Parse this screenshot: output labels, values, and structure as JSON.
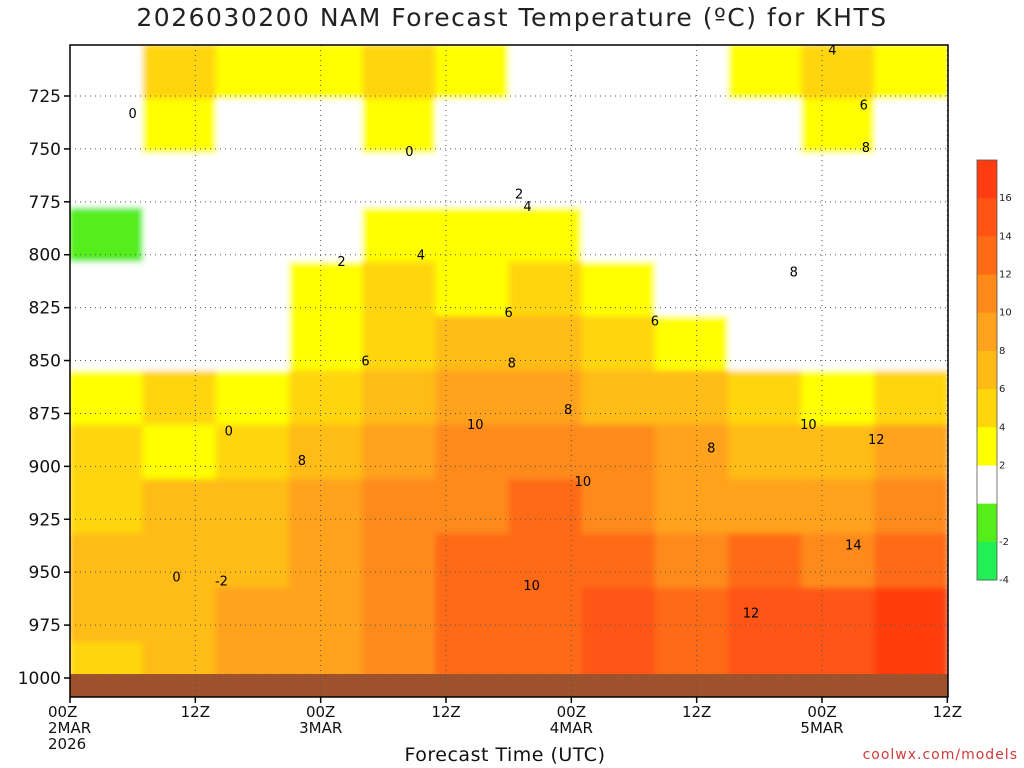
{
  "title": "2026030200 NAM Forecast Temperature (ºC) for KHTS",
  "xlabel": "Forecast Time (UTC)",
  "watermark": "coolwx.com/models",
  "chart_data": {
    "type": "heatmap",
    "title": "2026030200 NAM Forecast Temperature (ºC) for KHTS",
    "xlabel": "Forecast Time (UTC)",
    "ylabel": "",
    "x_ticks": [
      {
        "hour": 0,
        "lines": [
          "00Z",
          "2MAR",
          "2026"
        ]
      },
      {
        "hour": 12,
        "lines": [
          "12Z"
        ]
      },
      {
        "hour": 24,
        "lines": [
          "00Z",
          "3MAR"
        ]
      },
      {
        "hour": 36,
        "lines": [
          "12Z"
        ]
      },
      {
        "hour": 48,
        "lines": [
          "00Z",
          "4MAR"
        ]
      },
      {
        "hour": 60,
        "lines": [
          "12Z"
        ]
      },
      {
        "hour": 72,
        "lines": [
          "00Z",
          "5MAR"
        ]
      },
      {
        "hour": 84,
        "lines": [
          "12Z"
        ]
      }
    ],
    "xlim": [
      0,
      84
    ],
    "y_ticks": [
      725,
      750,
      775,
      800,
      825,
      850,
      875,
      900,
      925,
      950,
      975,
      1000
    ],
    "ylim": [
      700,
      1003
    ],
    "grid": true,
    "grid_style": "dotted",
    "colorbar": {
      "placement": "right",
      "tick_labels": [
        "16",
        "14",
        "12",
        "10",
        "8",
        "6",
        "4",
        "2",
        "-2",
        "-4"
      ],
      "bands": [
        {
          "from": 16,
          "to": 18,
          "color": "#ff3d10"
        },
        {
          "from": 14,
          "to": 16,
          "color": "#ff5412"
        },
        {
          "from": 12,
          "to": 14,
          "color": "#ff6a15"
        },
        {
          "from": 10,
          "to": 12,
          "color": "#ff8a1a"
        },
        {
          "from": 8,
          "to": 10,
          "color": "#ffa21c"
        },
        {
          "from": 6,
          "to": 8,
          "color": "#ffbb14"
        },
        {
          "from": 4,
          "to": 6,
          "color": "#ffd60c"
        },
        {
          "from": 2,
          "to": 4,
          "color": "#ffff00"
        },
        {
          "from": -2,
          "to": 2,
          "color": "#ffffff"
        },
        {
          "from": -4,
          "to": -2,
          "color": "#55ee1a"
        },
        {
          "from": -6,
          "to": -4,
          "color": "#22ee55"
        }
      ]
    },
    "series": [
      {
        "values": [
          [
            1,
            5,
            3,
            2,
            4,
            2,
            1,
            0,
            1,
            3,
            4,
            3
          ],
          [
            -1,
            2,
            1,
            0,
            3,
            1,
            0,
            -1,
            0,
            1,
            2,
            0
          ],
          [
            0,
            -1,
            -2,
            0,
            1,
            0,
            1,
            0,
            1,
            -1,
            -2,
            0
          ],
          [
            -3,
            -2,
            0,
            0,
            2,
            3,
            2,
            1,
            -1,
            0,
            0,
            1
          ],
          [
            -2,
            0,
            -1,
            2,
            4,
            3,
            5,
            2,
            1,
            0,
            -1,
            1
          ],
          [
            1,
            -1,
            0,
            3,
            4,
            6,
            6,
            4,
            3,
            1,
            0,
            0
          ],
          [
            3,
            4,
            2,
            5,
            6,
            9,
            8,
            7,
            6,
            5,
            3,
            4
          ],
          [
            4,
            3,
            5,
            6,
            8,
            10,
            11,
            10,
            8,
            7,
            6,
            8
          ],
          [
            5,
            6,
            6,
            8,
            10,
            11,
            12,
            11,
            9,
            9,
            8,
            10
          ],
          [
            6,
            6,
            7,
            8,
            11,
            12,
            13,
            12,
            11,
            12,
            10,
            12
          ],
          [
            6,
            6,
            8,
            9,
            11,
            12,
            13,
            14,
            12,
            14,
            15,
            16
          ],
          [
            5,
            7,
            8,
            9,
            11,
            12,
            13,
            14,
            13,
            15,
            15,
            16
          ]
        ]
      }
    ],
    "contour_labels": [
      {
        "text": "0",
        "hour": 6.0,
        "p": 733
      },
      {
        "text": "0",
        "hour": 32.5,
        "p": 751
      },
      {
        "text": "0",
        "hour": 15.2,
        "p": 883
      },
      {
        "text": "0",
        "hour": 10.2,
        "p": 952
      },
      {
        "text": "-2",
        "hour": 14.5,
        "p": 954
      },
      {
        "text": "2",
        "hour": 43.0,
        "p": 771
      },
      {
        "text": "2",
        "hour": 26.0,
        "p": 803
      },
      {
        "text": "4",
        "hour": 43.8,
        "p": 777
      },
      {
        "text": "4",
        "hour": 33.6,
        "p": 800
      },
      {
        "text": "4",
        "hour": 73.0,
        "p": 703
      },
      {
        "text": "6",
        "hour": 42.0,
        "p": 827
      },
      {
        "text": "6",
        "hour": 56.0,
        "p": 831
      },
      {
        "text": "6",
        "hour": 28.3,
        "p": 850
      },
      {
        "text": "6",
        "hour": 76.0,
        "p": 729
      },
      {
        "text": "8",
        "hour": 42.3,
        "p": 851
      },
      {
        "text": "8",
        "hour": 47.7,
        "p": 873
      },
      {
        "text": "8",
        "hour": 61.4,
        "p": 891
      },
      {
        "text": "8",
        "hour": 22.2,
        "p": 897
      },
      {
        "text": "8",
        "hour": 69.3,
        "p": 808
      },
      {
        "text": "8",
        "hour": 76.2,
        "p": 749
      },
      {
        "text": "10",
        "hour": 38.8,
        "p": 880
      },
      {
        "text": "10",
        "hour": 49.1,
        "p": 907
      },
      {
        "text": "10",
        "hour": 44.2,
        "p": 956
      },
      {
        "text": "10",
        "hour": 70.7,
        "p": 880
      },
      {
        "text": "12",
        "hour": 77.2,
        "p": 887
      },
      {
        "text": "12",
        "hour": 65.2,
        "p": 969
      },
      {
        "text": "14",
        "hour": 75.0,
        "p": 937
      }
    ]
  }
}
